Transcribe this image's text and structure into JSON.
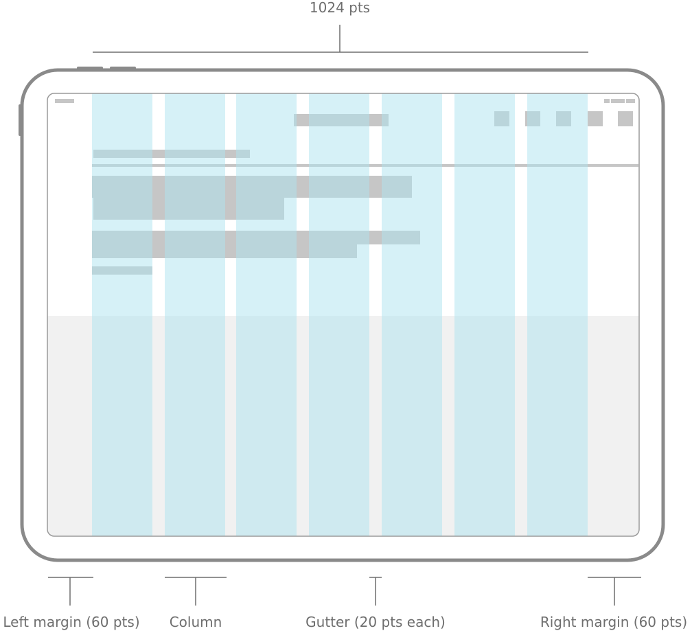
{
  "width_label": "1024 pts",
  "annotations": [
    {
      "label": "Left margin (60 pts)"
    },
    {
      "label": "Column"
    },
    {
      "label": "Gutter (20 pts each)"
    },
    {
      "label": "Right margin (60 pts)"
    }
  ]
}
